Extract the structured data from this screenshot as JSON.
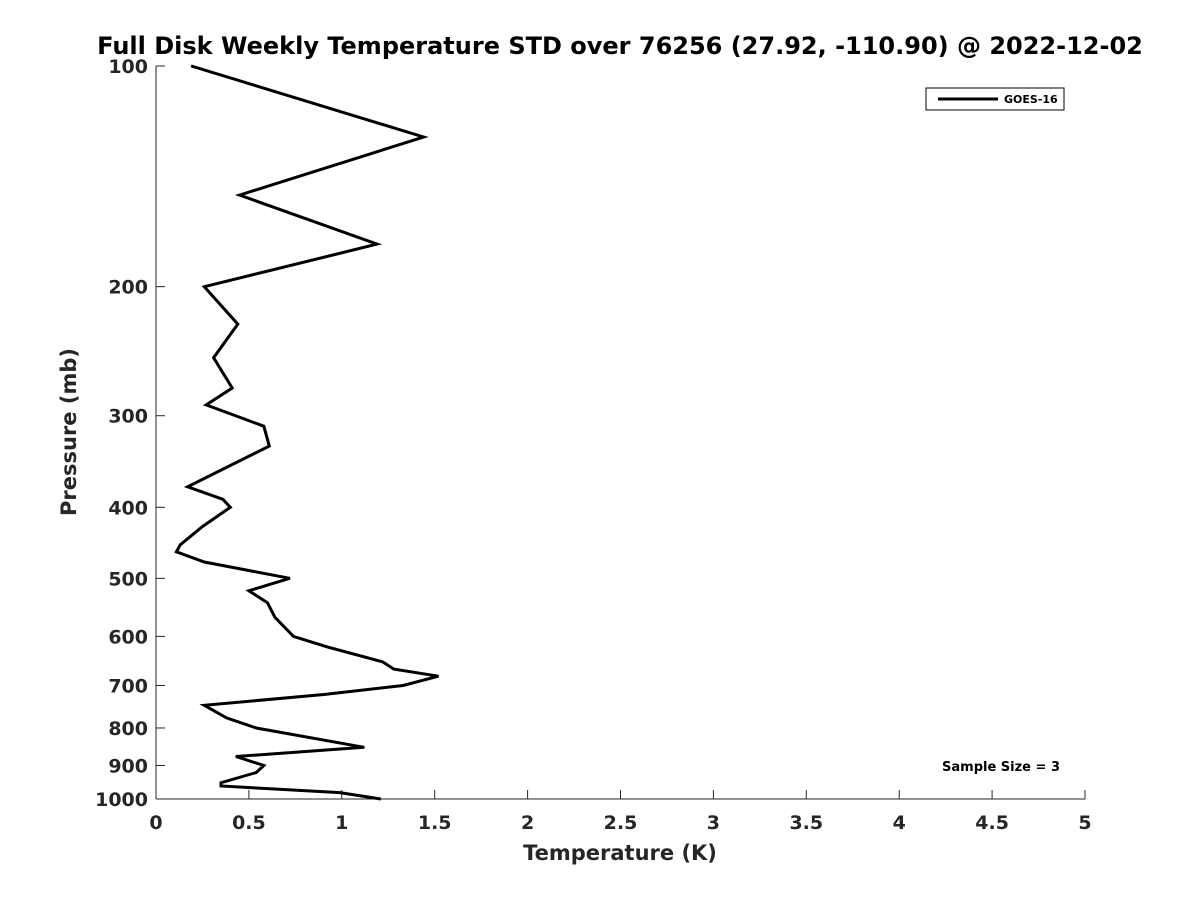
{
  "chart_data": {
    "type": "line",
    "title": "Full Disk Weekly Temperature STD over 76256 (27.92, -110.90) @ 2022-12-02",
    "xlabel": "Temperature (K)",
    "ylabel": "Pressure (mb)",
    "xlim": [
      0,
      5
    ],
    "ylim": [
      100,
      1000
    ],
    "y_scale": "log",
    "y_reversed": true,
    "x_ticks": [
      "0",
      "0.5",
      "1",
      "1.5",
      "2",
      "2.5",
      "3",
      "3.5",
      "4",
      "4.5",
      "5"
    ],
    "y_ticks": [
      "100",
      "200",
      "300",
      "400",
      "500",
      "600",
      "700",
      "800",
      "900",
      "1000"
    ],
    "grid": false,
    "legend": "top-right",
    "series": [
      {
        "name": "GOES-16",
        "color": "#000000",
        "points": [
          [
            0.19,
            100
          ],
          [
            1.44,
            125
          ],
          [
            0.45,
            150
          ],
          [
            1.19,
            175
          ],
          [
            0.26,
            200
          ],
          [
            0.44,
            225
          ],
          [
            0.31,
            250
          ],
          [
            0.41,
            275
          ],
          [
            0.27,
            290
          ],
          [
            0.58,
            310
          ],
          [
            0.61,
            330
          ],
          [
            0.17,
            375
          ],
          [
            0.36,
            390
          ],
          [
            0.4,
            400
          ],
          [
            0.25,
            425
          ],
          [
            0.13,
            450
          ],
          [
            0.11,
            460
          ],
          [
            0.26,
            475
          ],
          [
            0.72,
            500
          ],
          [
            0.5,
            520
          ],
          [
            0.6,
            540
          ],
          [
            0.64,
            565
          ],
          [
            0.74,
            600
          ],
          [
            0.92,
            620
          ],
          [
            1.22,
            650
          ],
          [
            1.28,
            665
          ],
          [
            1.52,
            680
          ],
          [
            1.33,
            700
          ],
          [
            0.91,
            720
          ],
          [
            0.26,
            745
          ],
          [
            0.38,
            775
          ],
          [
            0.54,
            800
          ],
          [
            1.12,
            850
          ],
          [
            0.43,
            875
          ],
          [
            0.58,
            900
          ],
          [
            0.54,
            920
          ],
          [
            0.35,
            950
          ],
          [
            0.35,
            960
          ],
          [
            0.99,
            980
          ],
          [
            1.21,
            1000
          ]
        ]
      }
    ],
    "annotation": "Sample Size = 3"
  }
}
